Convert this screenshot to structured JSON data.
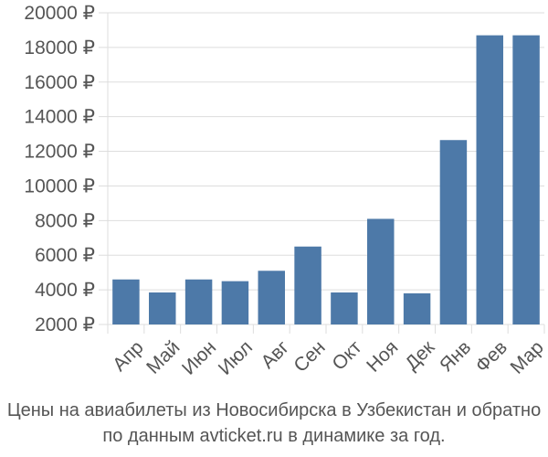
{
  "chart_data": {
    "type": "bar",
    "categories": [
      "Апр",
      "Май",
      "Июн",
      "Июл",
      "Авг",
      "Сен",
      "Окт",
      "Ноя",
      "Дек",
      "Янв",
      "Фев",
      "Мар"
    ],
    "values": [
      4600,
      3850,
      4600,
      4500,
      5100,
      6500,
      3850,
      8100,
      3800,
      12650,
      18700,
      18700
    ],
    "yticks": [
      "2000 ₽",
      "4000 ₽",
      "6000 ₽",
      "8000 ₽",
      "10000 ₽",
      "12000 ₽",
      "14000 ₽",
      "16000 ₽",
      "18000 ₽",
      "20000 ₽"
    ],
    "ylim": [
      2000,
      20000
    ],
    "grid": true,
    "bar_color": "#4d79a8",
    "grid_color": "#dddddd",
    "caption_lines": [
      "Цены на авиабилеты из Новосибирска в Узбекистан и обратно",
      "по данным avticket.ru в динамике за год."
    ]
  }
}
